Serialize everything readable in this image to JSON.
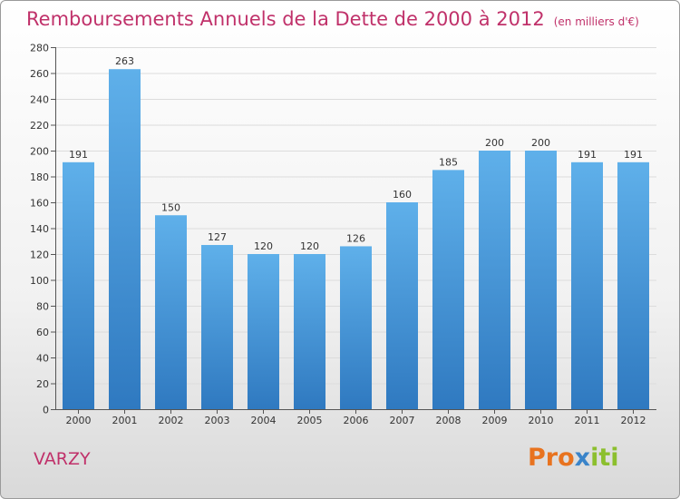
{
  "header": {
    "title": "Remboursements Annuels de la Dette de 2000 à 2012",
    "unit": "(en milliers d'€)"
  },
  "footer": {
    "place": "VARZY",
    "logo": {
      "part1": "Pro",
      "part2": "x",
      "part3": "iti"
    }
  },
  "colors": {
    "bar_top": "#5fb0ea",
    "bar_bottom": "#2f79c0",
    "title": "#c0316a"
  },
  "chart_data": {
    "type": "bar",
    "title": "Remboursements Annuels de la Dette de 2000 à 2012",
    "xlabel": "",
    "ylabel": "",
    "categories": [
      "2000",
      "2001",
      "2002",
      "2003",
      "2004",
      "2005",
      "2006",
      "2007",
      "2008",
      "2009",
      "2010",
      "2011",
      "2012"
    ],
    "values": [
      191,
      263,
      150,
      127,
      120,
      120,
      126,
      160,
      185,
      200,
      200,
      191,
      191
    ],
    "ylim": [
      0,
      280
    ],
    "yticks": [
      0,
      20,
      40,
      60,
      80,
      100,
      120,
      140,
      160,
      180,
      200,
      220,
      240,
      260,
      280
    ],
    "grid": true,
    "legend": "none"
  }
}
